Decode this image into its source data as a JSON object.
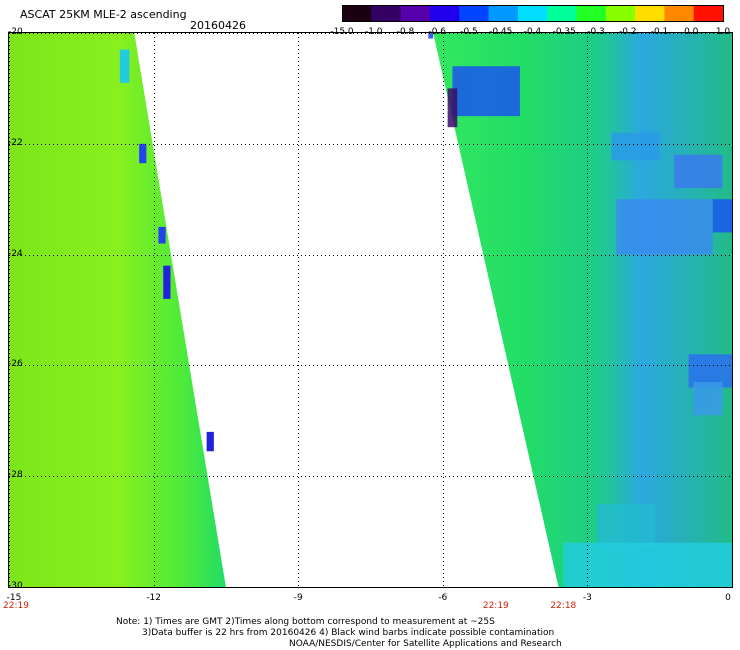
{
  "header": {
    "title": "ASCAT 25KM MLE-2 ascending",
    "date": "20160426"
  },
  "colorbar": {
    "labels": [
      "-15.0",
      "-1.0",
      "-0.8",
      "-0.6",
      "-0.5",
      "-0.45",
      "-0.4",
      "-0.35",
      "-0.3",
      "-0.2",
      "-0.1",
      "0.0",
      "1.0"
    ],
    "colors": [
      "#1a0010",
      "#330066",
      "#5500aa",
      "#2200ee",
      "#0044ff",
      "#0099ff",
      "#00ddff",
      "#00ff99",
      "#22ff22",
      "#88ff00",
      "#ffdd00",
      "#ff8800",
      "#ff1100"
    ]
  },
  "axes": {
    "x_ticks": [
      "-15",
      "-12",
      "-9",
      "-6",
      "-3",
      "0"
    ],
    "y_ticks": [
      "-20",
      "-22",
      "-24",
      "-26",
      "-28",
      "-30"
    ],
    "x_range": [
      -15,
      0
    ],
    "y_range": [
      -30,
      -20
    ]
  },
  "times": [
    {
      "label": "22:19",
      "lon": -15
    },
    {
      "label": "22:19",
      "lon": -4.9
    },
    {
      "label": "22:18",
      "lon": -3.5
    }
  ],
  "notes": {
    "line1": "Note: 1) Times are GMT 2)Times along bottom correspond to measurement at ~25S",
    "line2": "3)Data buffer is 22 hrs from 20160426 4) Black wind barbs indicate possible contamination",
    "line3": "NOAA/NESDIS/Center for Satellite Applications and Research"
  },
  "swaths": [
    {
      "name": "western",
      "lon_west": -15.0,
      "lat_top": -20.0,
      "lat_bottom": -30.0,
      "lon_east_top": -12.4,
      "lon_east_bottom": -10.5
    },
    {
      "name": "eastern",
      "lon_west_top": -6.2,
      "lon_west_bottom": -3.6,
      "lat_top": -20.0,
      "lat_bottom": -30.0,
      "lon_east": 0.0
    }
  ]
}
